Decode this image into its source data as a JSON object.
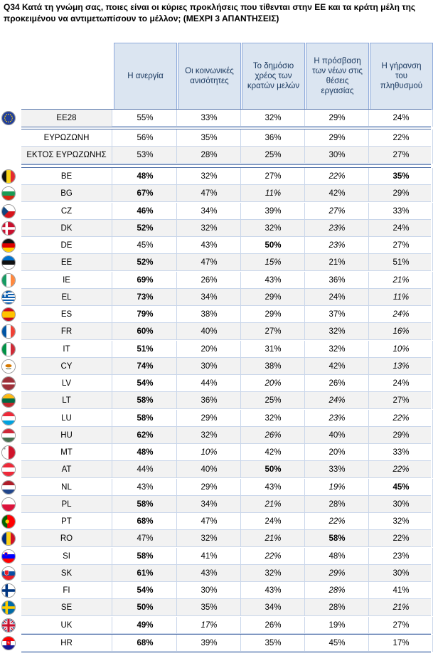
{
  "title": "Q34 Κατά τη γνώμη σας, ποιες είναι οι κύριες προκλήσεις που τίθενται στην ΕΕ και τα κράτη μέλη της προκειμένου να αντιμετωπίσουν το μέλλον; (ΜΕΧΡΙ 3 ΑΠΑΝΤΗΣΕΙΣ)",
  "columns": [
    "Η ανεργία",
    "Οι κοινωνικές ανισότητες",
    "Το δημόσιο χρέος των κρατών μελών",
    "Η πρόσβαση των νέων στις θέσεις εργασίας",
    "Η γήρανση του πληθυσμού"
  ],
  "groups": [
    [
      {
        "label": "ΕΕ28",
        "flag": "eu",
        "values": [
          "55%",
          "33%",
          "32%",
          "29%",
          "24%"
        ],
        "style": [
          "",
          "",
          "",
          "",
          ""
        ]
      }
    ],
    [
      {
        "label": "ΕΥΡΩΖΩΝΗ",
        "values": [
          "56%",
          "35%",
          "36%",
          "29%",
          "22%"
        ],
        "style": [
          "",
          "",
          "",
          "",
          ""
        ]
      },
      {
        "label": "ΕΚΤΟΣ ΕΥΡΩΖΩΝΗΣ",
        "values": [
          "53%",
          "28%",
          "25%",
          "30%",
          "27%"
        ],
        "style": [
          "",
          "",
          "",
          "",
          ""
        ]
      }
    ],
    [
      {
        "label": "BE",
        "flag": "be",
        "values": [
          "48%",
          "32%",
          "27%",
          "22%",
          "35%"
        ],
        "style": [
          "b",
          "",
          "",
          "i",
          "b"
        ]
      },
      {
        "label": "BG",
        "flag": "bg",
        "values": [
          "67%",
          "47%",
          "11%",
          "42%",
          "29%"
        ],
        "style": [
          "b",
          "",
          "i",
          "",
          ""
        ]
      },
      {
        "label": "CZ",
        "flag": "cz",
        "values": [
          "46%",
          "34%",
          "39%",
          "27%",
          "33%"
        ],
        "style": [
          "b",
          "",
          "",
          "i",
          ""
        ]
      },
      {
        "label": "DK",
        "flag": "dk",
        "values": [
          "52%",
          "32%",
          "32%",
          "23%",
          "24%"
        ],
        "style": [
          "b",
          "",
          "",
          "i",
          ""
        ]
      },
      {
        "label": "DE",
        "flag": "de",
        "values": [
          "45%",
          "43%",
          "50%",
          "23%",
          "27%"
        ],
        "style": [
          "",
          "",
          "b",
          "i",
          ""
        ]
      },
      {
        "label": "EE",
        "flag": "ee",
        "values": [
          "52%",
          "47%",
          "15%",
          "21%",
          "51%"
        ],
        "style": [
          "b",
          "",
          "i",
          "",
          ""
        ]
      },
      {
        "label": "IE",
        "flag": "ie",
        "values": [
          "69%",
          "26%",
          "43%",
          "36%",
          "21%"
        ],
        "style": [
          "b",
          "",
          "",
          "",
          "i"
        ]
      },
      {
        "label": "EL",
        "flag": "el",
        "values": [
          "73%",
          "34%",
          "29%",
          "24%",
          "11%"
        ],
        "style": [
          "b",
          "",
          "",
          "",
          "i"
        ]
      },
      {
        "label": "ES",
        "flag": "es",
        "values": [
          "79%",
          "38%",
          "29%",
          "37%",
          "24%"
        ],
        "style": [
          "b",
          "",
          "",
          "",
          "i"
        ]
      },
      {
        "label": "FR",
        "flag": "fr",
        "values": [
          "60%",
          "40%",
          "27%",
          "32%",
          "16%"
        ],
        "style": [
          "b",
          "",
          "",
          "",
          "i"
        ]
      },
      {
        "label": "IT",
        "flag": "it",
        "values": [
          "51%",
          "20%",
          "31%",
          "32%",
          "10%"
        ],
        "style": [
          "b",
          "",
          "",
          "",
          "i"
        ]
      },
      {
        "label": "CY",
        "flag": "cy",
        "values": [
          "74%",
          "30%",
          "38%",
          "42%",
          "13%"
        ],
        "style": [
          "b",
          "",
          "",
          "",
          "i"
        ]
      },
      {
        "label": "LV",
        "flag": "lv",
        "values": [
          "54%",
          "44%",
          "20%",
          "26%",
          "24%"
        ],
        "style": [
          "b",
          "",
          "i",
          "",
          ""
        ]
      },
      {
        "label": "LT",
        "flag": "lt",
        "values": [
          "58%",
          "36%",
          "25%",
          "24%",
          "27%"
        ],
        "style": [
          "b",
          "",
          "",
          "i",
          ""
        ]
      },
      {
        "label": "LU",
        "flag": "lu",
        "values": [
          "58%",
          "29%",
          "32%",
          "23%",
          "22%"
        ],
        "style": [
          "b",
          "",
          "",
          "i",
          "i"
        ]
      },
      {
        "label": "HU",
        "flag": "hu",
        "values": [
          "62%",
          "32%",
          "26%",
          "40%",
          "29%"
        ],
        "style": [
          "b",
          "",
          "i",
          "",
          ""
        ]
      },
      {
        "label": "MT",
        "flag": "mt",
        "values": [
          "48%",
          "10%",
          "42%",
          "20%",
          "33%"
        ],
        "style": [
          "b",
          "i",
          "",
          "",
          ""
        ]
      },
      {
        "label": "AT",
        "flag": "at",
        "values": [
          "44%",
          "40%",
          "50%",
          "33%",
          "22%"
        ],
        "style": [
          "",
          "",
          "b",
          "",
          "i"
        ]
      },
      {
        "label": "NL",
        "flag": "nl",
        "values": [
          "43%",
          "29%",
          "43%",
          "19%",
          "45%"
        ],
        "style": [
          "",
          "",
          "",
          "i",
          "b"
        ]
      },
      {
        "label": "PL",
        "flag": "pl",
        "values": [
          "58%",
          "34%",
          "21%",
          "28%",
          "30%"
        ],
        "style": [
          "b",
          "",
          "i",
          "",
          ""
        ]
      },
      {
        "label": "PT",
        "flag": "pt",
        "values": [
          "68%",
          "47%",
          "24%",
          "22%",
          "32%"
        ],
        "style": [
          "b",
          "",
          "",
          "i",
          ""
        ]
      },
      {
        "label": "RO",
        "flag": "ro",
        "values": [
          "47%",
          "32%",
          "21%",
          "58%",
          "22%"
        ],
        "style": [
          "",
          "",
          "i",
          "b",
          ""
        ]
      },
      {
        "label": "SI",
        "flag": "si",
        "values": [
          "58%",
          "41%",
          "22%",
          "48%",
          "23%"
        ],
        "style": [
          "b",
          "",
          "i",
          "",
          ""
        ]
      },
      {
        "label": "SK",
        "flag": "sk",
        "values": [
          "61%",
          "43%",
          "32%",
          "29%",
          "30%"
        ],
        "style": [
          "b",
          "",
          "",
          "i",
          ""
        ]
      },
      {
        "label": "FI",
        "flag": "fi",
        "values": [
          "54%",
          "30%",
          "43%",
          "28%",
          "41%"
        ],
        "style": [
          "b",
          "",
          "",
          "i",
          ""
        ]
      },
      {
        "label": "SE",
        "flag": "se",
        "values": [
          "50%",
          "35%",
          "34%",
          "28%",
          "21%"
        ],
        "style": [
          "b",
          "",
          "",
          "",
          "i"
        ]
      },
      {
        "label": "UK",
        "flag": "uk",
        "values": [
          "49%",
          "17%",
          "26%",
          "19%",
          "27%"
        ],
        "style": [
          "b",
          "i",
          "",
          "",
          ""
        ]
      }
    ],
    [
      {
        "label": "HR",
        "flag": "hr",
        "values": [
          "68%",
          "39%",
          "35%",
          "45%",
          "17%"
        ],
        "style": [
          "b",
          "",
          "",
          "",
          ""
        ]
      }
    ]
  ]
}
